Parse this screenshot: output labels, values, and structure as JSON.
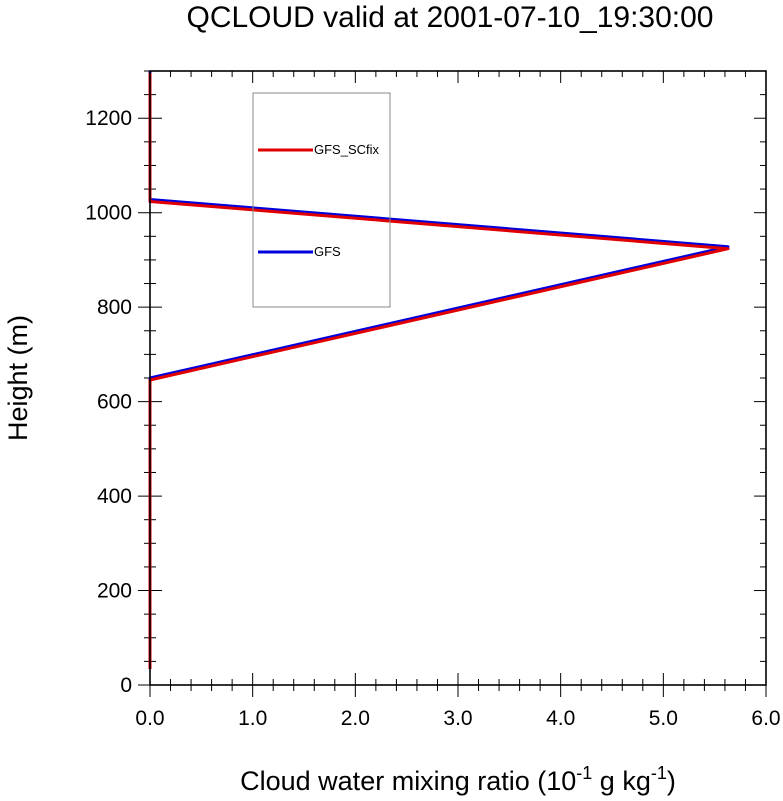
{
  "chart_data": {
    "type": "line",
    "title": "QCLOUD valid at 2001-07-10_19:30:00",
    "xlabel": {
      "prefix": "Cloud water mixing ratio (10",
      "exp1": "-1",
      "middle": " g kg",
      "exp2": "-1",
      "suffix": ")"
    },
    "ylabel": "Height (m)",
    "xlim": [
      0,
      6
    ],
    "ylim": [
      0,
      1300
    ],
    "xticks": [
      0,
      1,
      2,
      3,
      4,
      5,
      6
    ],
    "xtick_labels": [
      "0.0",
      "1.0",
      "2.0",
      "3.0",
      "4.0",
      "5.0",
      "6.0"
    ],
    "yticks": [
      0,
      200,
      400,
      600,
      800,
      1000,
      1200
    ],
    "ytick_labels": [
      "0",
      "200",
      "400",
      "600",
      "800",
      "1000",
      "1200"
    ],
    "x_minor_step": 0.2,
    "y_minor_step": 50,
    "legend_placement": "upper-left-inside",
    "series": [
      {
        "name": "GFS",
        "color": "#0000dd",
        "points": [
          [
            0,
            38
          ],
          [
            0,
            650
          ],
          [
            5.63,
            928
          ],
          [
            0,
            1028
          ],
          [
            0,
            1300
          ]
        ]
      },
      {
        "name": "GFS_SCfix",
        "color": "#e00000",
        "points": [
          [
            0,
            38
          ],
          [
            0,
            650
          ],
          [
            5.63,
            928
          ],
          [
            0,
            1028
          ],
          [
            0,
            1300
          ]
        ]
      }
    ],
    "legend": [
      "GFS_SCfix",
      "GFS"
    ]
  }
}
